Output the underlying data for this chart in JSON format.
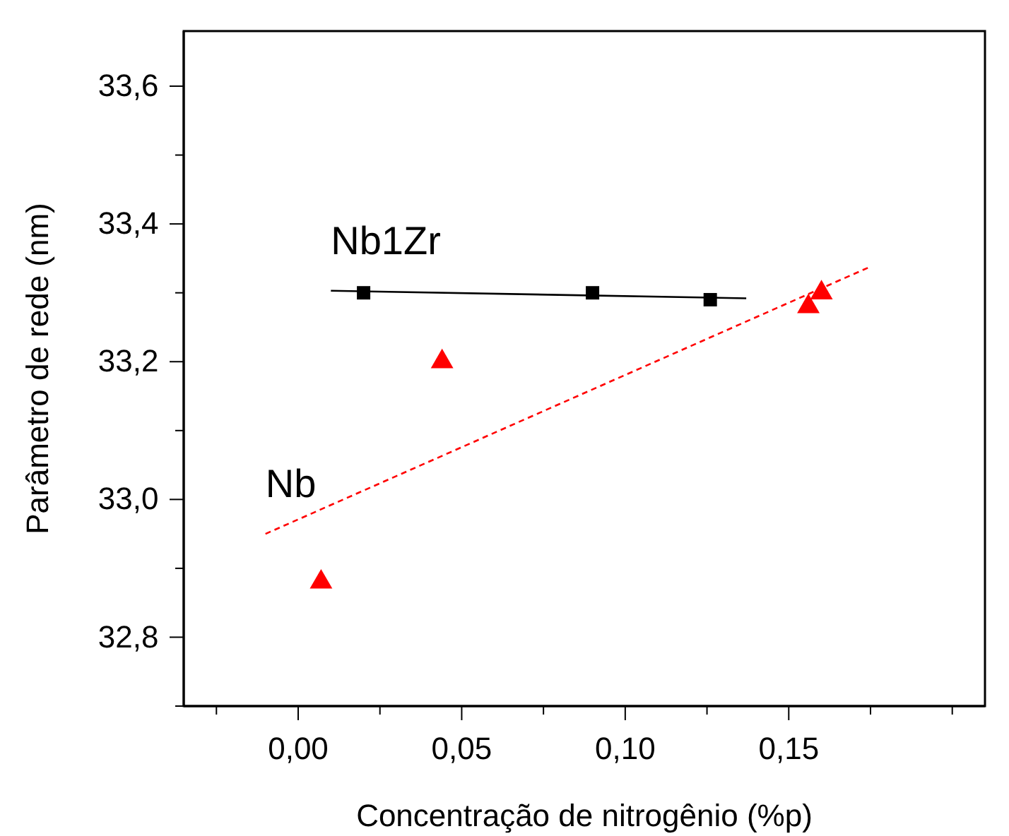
{
  "chart_data": {
    "type": "scatter",
    "xlabel": "Concentração de nitrogênio (%p)",
    "ylabel": "Parâmetro de rede (nm)",
    "xlim": [
      -0.035,
      0.21
    ],
    "ylim": [
      32.7,
      33.68
    ],
    "xticks": [
      {
        "value": -0.025,
        "label": null
      },
      {
        "value": 0,
        "label": "0,00"
      },
      {
        "value": 0.025,
        "label": null
      },
      {
        "value": 0.05,
        "label": "0,05"
      },
      {
        "value": 0.075,
        "label": null
      },
      {
        "value": 0.1,
        "label": "0,10"
      },
      {
        "value": 0.125,
        "label": null
      },
      {
        "value": 0.15,
        "label": "0,15"
      },
      {
        "value": 0.175,
        "label": null
      },
      {
        "value": 0.2,
        "label": null
      }
    ],
    "yticks": [
      {
        "value": 32.7,
        "label": null
      },
      {
        "value": 32.8,
        "label": "32,8"
      },
      {
        "value": 32.9,
        "label": null
      },
      {
        "value": 33.0,
        "label": "33,0"
      },
      {
        "value": 33.1,
        "label": null
      },
      {
        "value": 33.2,
        "label": "33,2"
      },
      {
        "value": 33.3,
        "label": null
      },
      {
        "value": 33.4,
        "label": "33,4"
      },
      {
        "value": 33.5,
        "label": null
      },
      {
        "value": 33.6,
        "label": "33,6"
      }
    ],
    "grid": false,
    "series": [
      {
        "color": "#000000",
        "marker": "square",
        "x": [
          0.02,
          0.09,
          0.126
        ],
        "values": [
          33.3,
          33.3,
          33.29
        ]
      },
      {
        "type": "line",
        "name": "Nb1Zr",
        "color": "#000000",
        "line_style": "solid",
        "x": [
          0.01,
          0.137
        ],
        "values": [
          33.303,
          33.292
        ]
      },
      {
        "color": "#ff0000",
        "marker": "triangle",
        "x": [
          0.007,
          0.044,
          0.156,
          0.16
        ],
        "values": [
          32.88,
          33.2,
          33.28,
          33.3
        ]
      },
      {
        "type": "line",
        "name": "Nb",
        "color": "#ff0000",
        "line_style": "dashed",
        "x": [
          -0.01,
          0.175
        ],
        "values": [
          32.95,
          33.338
        ]
      }
    ]
  }
}
